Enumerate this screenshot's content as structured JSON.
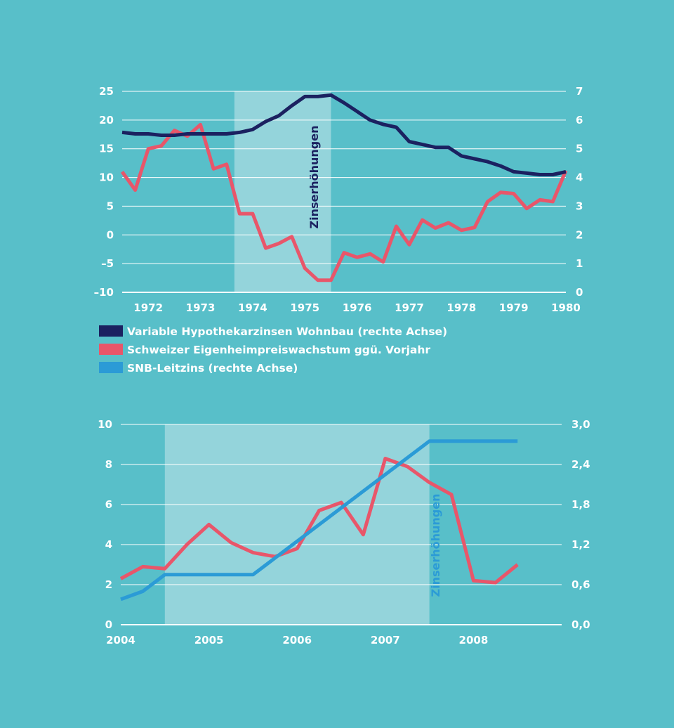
{
  "colors": {
    "background": "#58bfc9",
    "shade": "#94d4db",
    "mortgage": "#1b2160",
    "house_price": "#e8566a",
    "snb": "#2b9bd6",
    "text": "#ffffff"
  },
  "legend": [
    {
      "label": "Variable Hypothekarzinsen Wohnbau (rechte Achse)",
      "color": "#1b2160"
    },
    {
      "label": "Schweizer Eigenheimpreiswachstum ggü. Vorjahr",
      "color": "#e8566a"
    },
    {
      "label": "SNB-Leitzins (rechte Achse)",
      "color": "#2b9bd6"
    }
  ],
  "chart_data": [
    {
      "type": "line",
      "title": "",
      "xlabel": "",
      "ylabel": "",
      "xlim": [
        1971.5,
        1980
      ],
      "ylim_left": [
        -10,
        25
      ],
      "ylim_right": [
        0,
        7
      ],
      "x_ticks": [
        "1972",
        "1973",
        "1974",
        "1975",
        "1976",
        "1977",
        "1978",
        "1979",
        "1980"
      ],
      "y_ticks_left": [
        "25",
        "20",
        "15",
        "10",
        "5",
        "0",
        "–5",
        "–10"
      ],
      "y_ticks_right": [
        "7",
        "6",
        "5",
        "4",
        "3",
        "2",
        "1",
        "0"
      ],
      "shaded_region": {
        "from": 1973.65,
        "to": 1975.5,
        "label": "Zinserhöhungen"
      },
      "series": [
        {
          "key": "house_price",
          "axis": "left",
          "x": [
            1971.5,
            1971.75,
            1972.0,
            1972.25,
            1972.5,
            1972.75,
            1973.0,
            1973.25,
            1973.5,
            1973.75,
            1974.0,
            1974.25,
            1974.5,
            1974.75,
            1975.0,
            1975.25,
            1975.5,
            1975.75,
            1976.0,
            1976.25,
            1976.5,
            1976.75,
            1977.0,
            1977.25,
            1977.5,
            1977.75,
            1978.0,
            1978.25,
            1978.5,
            1978.75,
            1979.0,
            1979.25,
            1979.5,
            1979.75,
            1980.0
          ],
          "values": [
            11,
            7.8,
            15,
            15.5,
            18.2,
            17.2,
            19.2,
            11.5,
            12.3,
            3.7,
            3.7,
            -2.3,
            -1.5,
            -0.3,
            -5.8,
            -7.9,
            -7.9,
            -3.1,
            -3.9,
            -3.3,
            -4.7,
            1.5,
            -1.7,
            2.6,
            1.2,
            2.1,
            0.8,
            1.3,
            5.8,
            7.4,
            7.2,
            4.6,
            6.1,
            5.8,
            11.2
          ]
        },
        {
          "key": "mortgage",
          "axis": "right",
          "x": [
            1971.5,
            1971.75,
            1972.0,
            1972.25,
            1972.5,
            1972.75,
            1973.0,
            1973.25,
            1973.5,
            1973.75,
            1974.0,
            1974.25,
            1974.5,
            1974.75,
            1975.0,
            1975.25,
            1975.5,
            1975.75,
            1976.0,
            1976.25,
            1976.5,
            1976.75,
            1977.0,
            1977.25,
            1977.5,
            1977.75,
            1978.0,
            1978.25,
            1978.5,
            1978.75,
            1979.0,
            1979.25,
            1979.5,
            1979.75,
            1980.0
          ],
          "values": [
            5.57,
            5.52,
            5.52,
            5.47,
            5.47,
            5.52,
            5.52,
            5.52,
            5.52,
            5.57,
            5.67,
            5.95,
            6.15,
            6.5,
            6.82,
            6.82,
            6.87,
            6.6,
            6.3,
            6.0,
            5.85,
            5.75,
            5.25,
            5.15,
            5.05,
            5.05,
            4.75,
            4.65,
            4.55,
            4.4,
            4.2,
            4.15,
            4.1,
            4.1,
            4.2
          ]
        }
      ]
    },
    {
      "type": "line",
      "title": "",
      "xlabel": "",
      "ylabel": "",
      "xlim": [
        2004,
        2009
      ],
      "ylim_left": [
        0,
        10
      ],
      "ylim_right": [
        0,
        3
      ],
      "x_ticks": [
        "2004",
        "2005",
        "2006",
        "2007",
        "2008"
      ],
      "y_ticks_left": [
        "10",
        "8",
        "6",
        "4",
        "2",
        "0"
      ],
      "y_ticks_right": [
        "3,0",
        "2,4",
        "1,8",
        "1,2",
        "0,6",
        "0,0"
      ],
      "shaded_region": {
        "from": 2004.5,
        "to": 2007.5,
        "label": "Zinserhöhungen"
      },
      "series": [
        {
          "key": "house_price",
          "axis": "left",
          "x": [
            2004.0,
            2004.25,
            2004.5,
            2004.75,
            2005.0,
            2005.25,
            2005.5,
            2005.75,
            2006.0,
            2006.25,
            2006.5,
            2006.75,
            2007.0,
            2007.25,
            2007.5,
            2007.75,
            2008.0,
            2008.25,
            2008.5
          ],
          "values": [
            2.3,
            2.9,
            2.8,
            4.0,
            5.0,
            4.1,
            3.6,
            3.4,
            3.8,
            5.7,
            6.1,
            4.5,
            8.3,
            7.9,
            7.1,
            6.5,
            2.2,
            2.1,
            3.0
          ]
        },
        {
          "key": "snb",
          "axis": "right",
          "x": [
            2004.0,
            2004.25,
            2004.5,
            2004.75,
            2005.0,
            2005.25,
            2005.5,
            2005.75,
            2006.0,
            2006.25,
            2006.5,
            2006.75,
            2007.0,
            2007.25,
            2007.5,
            2007.75,
            2008.0,
            2008.25,
            2008.5
          ],
          "values": [
            0.38,
            0.5,
            0.75,
            0.75,
            0.75,
            0.75,
            0.75,
            1.0,
            1.25,
            1.5,
            1.75,
            2.0,
            2.25,
            2.5,
            2.75,
            2.75,
            2.75,
            2.75,
            2.75
          ]
        }
      ]
    }
  ]
}
